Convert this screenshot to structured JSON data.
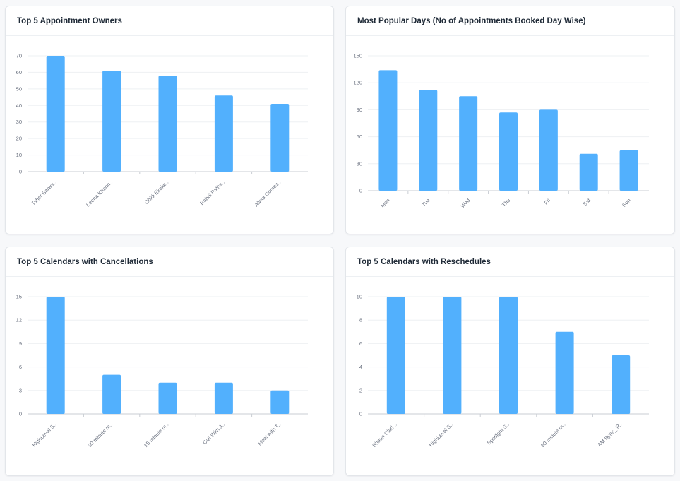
{
  "colors": {
    "bar": "#52b0fd"
  },
  "charts": [
    {
      "id": "owners",
      "title": "Top 5 Appointment Owners",
      "chart_data": {
        "type": "bar",
        "title": "Top 5 Appointment Owners",
        "categories": [
          "Taher Sarwa...",
          "Leena Khann...",
          "Chidi Ekeke...",
          "Rahul Patha...",
          "Alysa Gomez..."
        ],
        "values": [
          70,
          61,
          58,
          46,
          41
        ],
        "yticks": [
          0,
          10,
          20,
          30,
          40,
          50,
          60,
          70
        ],
        "ylim": [
          0,
          70
        ],
        "xlabel": "",
        "ylabel": ""
      }
    },
    {
      "id": "days",
      "title": "Most Popular Days (No of Appointments Booked Day Wise)",
      "chart_data": {
        "type": "bar",
        "title": "Most Popular Days (No of Appointments Booked Day Wise)",
        "categories": [
          "Mon",
          "Tue",
          "Wed",
          "Thu",
          "Fri",
          "Sat",
          "Sun"
        ],
        "values": [
          134,
          112,
          105,
          87,
          90,
          41,
          45
        ],
        "yticks": [
          0,
          30,
          60,
          90,
          120,
          150
        ],
        "ylim": [
          0,
          150
        ],
        "xlabel": "",
        "ylabel": ""
      }
    },
    {
      "id": "cancellations",
      "title": "Top 5 Calendars with Cancellations",
      "chart_data": {
        "type": "bar",
        "title": "Top 5 Calendars with Cancellations",
        "categories": [
          "HighLevel S...",
          "30 minute m...",
          "15 minute m...",
          "Call With J...",
          "Meet with T..."
        ],
        "values": [
          15,
          5,
          4,
          4,
          3
        ],
        "yticks": [
          0,
          3,
          6,
          9,
          12,
          15
        ],
        "ylim": [
          0,
          15
        ],
        "xlabel": "",
        "ylabel": ""
      }
    },
    {
      "id": "reschedules",
      "title": "Top 5 Calendars with Reschedules",
      "chart_data": {
        "type": "bar",
        "title": "Top 5 Calendars with Reschedules",
        "categories": [
          "Shaun Clark...",
          "HighLevel S...",
          "Spotlight S...",
          "30 minute m...",
          "AM Sync_ P..."
        ],
        "values": [
          10,
          10,
          10,
          7,
          5
        ],
        "yticks": [
          0,
          2,
          4,
          6,
          8,
          10
        ],
        "ylim": [
          0,
          10
        ],
        "xlabel": "",
        "ylabel": ""
      }
    }
  ]
}
